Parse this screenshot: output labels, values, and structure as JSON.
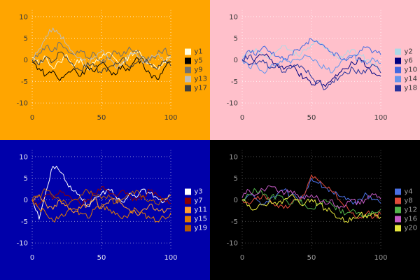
{
  "chart_data": {
    "type": "line",
    "layout": "2x2-grid",
    "grid": true,
    "legend_position": "right",
    "charts": [
      {
        "name": "top-left",
        "background": "#ffa500",
        "text_color": "#3a3a3a",
        "grid_color": "#ffffff",
        "xlim": [
          0,
          100
        ],
        "ylim": [
          -10,
          10
        ],
        "xticks": [
          0,
          50,
          100
        ],
        "yticks": [
          -10,
          -5,
          0,
          5,
          10
        ],
        "x_values": [
          0,
          5,
          10,
          15,
          20,
          25,
          30,
          35,
          40,
          45,
          50,
          55,
          60,
          65,
          70,
          75,
          80,
          85,
          90,
          95,
          100
        ],
        "series": [
          {
            "name": "y1",
            "color": "#ffffe0",
            "values": [
              0.5,
              -1,
              0.8,
              -2,
              -0.5,
              1.2,
              -1.5,
              0.3,
              -2.2,
              -0.8,
              0.5,
              1.8,
              0.2,
              -1.2,
              1.0,
              2.2,
              0.5,
              -0.8,
              -2.0,
              -0.5,
              1.0
            ]
          },
          {
            "name": "y5",
            "color": "#000000",
            "values": [
              -0.5,
              -2,
              -3.5,
              -2.5,
              -4.8,
              -3.2,
              -2.0,
              -3.8,
              -1.5,
              -2.8,
              -0.8,
              -2.2,
              -3.5,
              -1.2,
              -2.5,
              0.5,
              -1.0,
              -3.2,
              -4.5,
              -2.0,
              -0.5
            ]
          },
          {
            "name": "y9",
            "color": "#707070",
            "values": [
              0,
              1.5,
              3.2,
              2.0,
              4.0,
              2.5,
              1.2,
              2.2,
              0.5,
              1.5,
              -0.8,
              0.5,
              2.0,
              1.0,
              3.0,
              1.8,
              0.8,
              -0.2,
              1.2,
              2.4,
              1.0
            ]
          },
          {
            "name": "y13",
            "color": "#bdbdbd",
            "values": [
              0,
              2.5,
              5.5,
              7.4,
              6.0,
              3.5,
              1.5,
              0.5,
              -1.0,
              0.8,
              2.0,
              0.2,
              -1.8,
              -0.5,
              0.8,
              1.5,
              -0.8,
              0.4,
              1.2,
              -0.4,
              0.6
            ]
          },
          {
            "name": "y17",
            "color": "#3f3f3f",
            "values": [
              0,
              -1.2,
              0.8,
              -0.4,
              1.8,
              0.6,
              -1.4,
              -2.4,
              -0.6,
              -1.6,
              -3.0,
              -1.8,
              -0.6,
              0.4,
              -1.8,
              -0.8,
              0.2,
              -1.2,
              -2.2,
              -0.4,
              -1.4
            ]
          }
        ]
      },
      {
        "name": "top-right",
        "background": "#ffc0cb",
        "text_color": "#3a3a3a",
        "grid_color": "#ffffff",
        "xlim": [
          0,
          100
        ],
        "ylim": [
          -10,
          10
        ],
        "xticks": [
          0,
          50,
          100
        ],
        "yticks": [
          -10,
          -5,
          0,
          5,
          10
        ],
        "x_values": [
          0,
          5,
          10,
          15,
          20,
          25,
          30,
          35,
          40,
          45,
          50,
          55,
          60,
          65,
          70,
          75,
          80,
          85,
          90,
          95,
          100
        ],
        "series": [
          {
            "name": "y2",
            "color": "#add8e6",
            "values": [
              0.5,
              1.8,
              2.6,
              1.2,
              0.4,
              2.0,
              3.2,
              2.2,
              1.0,
              2.4,
              3.6,
              4.4,
              2.6,
              1.2,
              0.2,
              1.4,
              2.4,
              1.2,
              0.0,
              -1.2,
              -2.0
            ]
          },
          {
            "name": "y6",
            "color": "#000080",
            "values": [
              0,
              -1.2,
              0.4,
              1.2,
              0.2,
              -1.0,
              -2.2,
              -1.2,
              -3.0,
              -4.2,
              -5.8,
              -4.8,
              -6.2,
              -4.4,
              -3.0,
              -2.0,
              -0.8,
              0.4,
              -1.8,
              -3.0,
              -3.8
            ]
          },
          {
            "name": "y10",
            "color": "#4169e1",
            "values": [
              0,
              2.2,
              1.0,
              3.0,
              2.0,
              0.8,
              0.0,
              1.2,
              2.4,
              3.4,
              4.8,
              3.8,
              2.8,
              1.8,
              0.8,
              -0.2,
              1.0,
              2.2,
              3.0,
              2.0,
              1.2
            ]
          },
          {
            "name": "y14",
            "color": "#6495ed",
            "values": [
              0,
              -1.8,
              -0.8,
              -2.8,
              -1.8,
              -0.8,
              0.4,
              -0.8,
              0.2,
              1.2,
              0.2,
              -1.0,
              -2.0,
              -3.0,
              -1.2,
              0.0,
              1.0,
              0.0,
              -1.0,
              0.2,
              -0.8
            ]
          },
          {
            "name": "y18",
            "color": "#26329b",
            "values": [
              0,
              1.0,
              -1.0,
              0.0,
              -2.0,
              -1.0,
              -2.8,
              -2.0,
              -1.0,
              -2.2,
              -4.0,
              -5.2,
              -6.8,
              -5.0,
              -4.0,
              -3.0,
              -2.0,
              -3.0,
              -2.2,
              -1.2,
              -3.0
            ]
          }
        ]
      },
      {
        "name": "bottom-left",
        "background": "#0000aa",
        "text_color": "#e0e0ee",
        "grid_color": "#b0b0e0",
        "xlim": [
          0,
          100
        ],
        "ylim": [
          -10,
          10
        ],
        "xticks": [
          0,
          50,
          100
        ],
        "yticks": [
          -10,
          -5,
          0,
          5,
          10
        ],
        "x_values": [
          0,
          5,
          10,
          15,
          20,
          25,
          30,
          35,
          40,
          45,
          50,
          55,
          60,
          65,
          70,
          75,
          80,
          85,
          90,
          95,
          100
        ],
        "series": [
          {
            "name": "y3",
            "color": "#ffffff",
            "values": [
              0,
              -4.5,
              2.0,
              7.8,
              6.5,
              4.0,
              2.0,
              0.5,
              -1.5,
              0.5,
              1.5,
              2.5,
              1.0,
              -0.5,
              1.5,
              0.5,
              2.5,
              1.5,
              0.5,
              -0.5,
              1.0
            ]
          },
          {
            "name": "y7",
            "color": "#8b0000",
            "values": [
              0,
              -1.0,
              1.2,
              0.2,
              2.2,
              1.0,
              0.0,
              -1.2,
              0.2,
              1.4,
              3.0,
              2.0,
              1.0,
              2.2,
              1.0,
              -0.2,
              1.0,
              2.2,
              1.2,
              0.2,
              -0.8
            ]
          },
          {
            "name": "y11",
            "color": "#ff9d2e",
            "values": [
              0,
              1.2,
              -1.0,
              -2.2,
              0.0,
              -1.2,
              -3.0,
              -2.0,
              -1.0,
              0.2,
              -2.0,
              -0.8,
              0.2,
              -1.0,
              -2.2,
              -3.2,
              -2.2,
              -1.0,
              -2.0,
              -3.0,
              -2.0
            ]
          },
          {
            "name": "y15",
            "color": "#e07b00",
            "values": [
              0,
              -2.0,
              -3.2,
              -4.8,
              -3.8,
              -2.8,
              -2.0,
              -3.0,
              -4.2,
              -2.2,
              -1.2,
              -2.4,
              -3.4,
              -4.4,
              -3.2,
              -2.2,
              -3.2,
              -4.2,
              -5.0,
              -4.0,
              -3.0
            ]
          },
          {
            "name": "y19",
            "color": "#b85c00",
            "values": [
              0,
              1.0,
              2.2,
              1.0,
              0.0,
              -1.2,
              0.0,
              1.2,
              2.2,
              1.0,
              0.2,
              1.2,
              -0.8,
              0.2,
              1.2,
              2.2,
              1.0,
              0.0,
              -1.0,
              0.2,
              1.2
            ]
          }
        ]
      },
      {
        "name": "bottom-right",
        "background": "#000000",
        "text_color": "#9a9a9a",
        "grid_color": "#606060",
        "xlim": [
          0,
          100
        ],
        "ylim": [
          -10,
          10
        ],
        "xticks": [
          0,
          50,
          100
        ],
        "yticks": [
          -10,
          -5,
          0,
          5,
          10
        ],
        "x_values": [
          0,
          5,
          10,
          15,
          20,
          25,
          30,
          35,
          40,
          45,
          50,
          55,
          60,
          65,
          70,
          75,
          80,
          85,
          90,
          95,
          100
        ],
        "series": [
          {
            "name": "y4",
            "color": "#4a6fe3",
            "values": [
              0,
              1.2,
              0.2,
              -1.0,
              0.2,
              1.2,
              2.2,
              1.0,
              0.2,
              1.2,
              5.0,
              3.8,
              2.8,
              1.8,
              0.8,
              0.0,
              -1.0,
              0.2,
              1.2,
              0.2,
              -0.8
            ]
          },
          {
            "name": "y8",
            "color": "#e04b3a",
            "values": [
              0,
              -1.0,
              0.2,
              1.2,
              0.0,
              -1.2,
              -2.0,
              -1.0,
              0.2,
              1.2,
              5.8,
              4.4,
              3.0,
              1.8,
              0.0,
              -1.2,
              -3.0,
              -4.0,
              -3.0,
              -4.0,
              -3.2
            ]
          },
          {
            "name": "y12",
            "color": "#53b24a",
            "values": [
              0,
              1.2,
              2.2,
              1.2,
              0.2,
              1.0,
              0.0,
              -1.0,
              0.2,
              -1.0,
              -2.0,
              -1.0,
              0.0,
              -1.2,
              -2.2,
              -3.2,
              -2.2,
              -3.0,
              -4.0,
              -3.0,
              -2.2
            ]
          },
          {
            "name": "y16",
            "color": "#c45ac4",
            "values": [
              0.5,
              2.2,
              1.2,
              2.4,
              3.2,
              2.2,
              1.2,
              2.2,
              1.2,
              0.2,
              1.2,
              0.2,
              -1.0,
              0.0,
              -2.0,
              -1.0,
              0.0,
              -1.0,
              0.2,
              1.2,
              0.2
            ]
          },
          {
            "name": "y20",
            "color": "#e6e63c",
            "values": [
              0,
              -1.2,
              -2.2,
              -1.2,
              -0.2,
              -1.2,
              0.0,
              1.0,
              0.0,
              -1.0,
              0.2,
              -1.0,
              -2.0,
              -3.0,
              -4.2,
              -5.0,
              -4.0,
              -3.2,
              -4.2,
              -3.2,
              -4.0
            ]
          }
        ]
      }
    ]
  }
}
